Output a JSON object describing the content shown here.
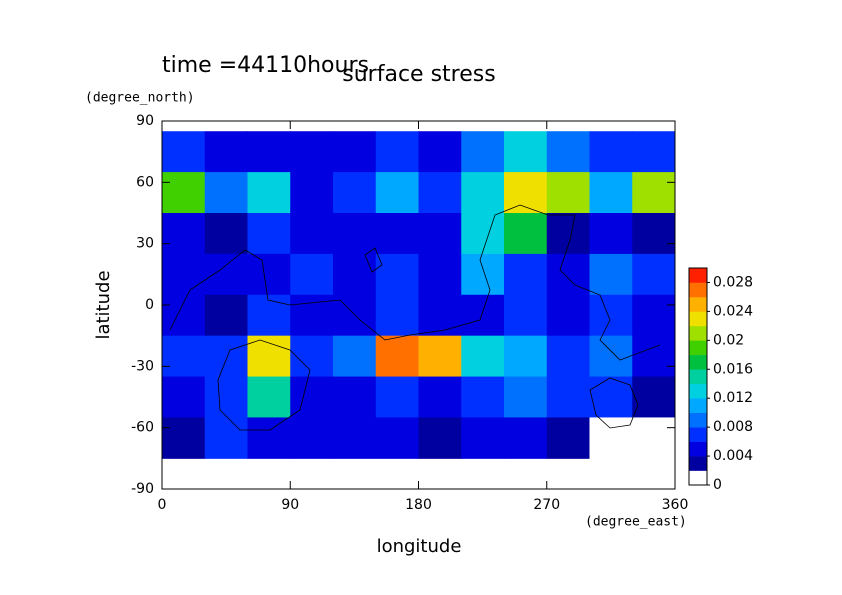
{
  "chart_data": {
    "type": "heatmap",
    "time_label": "time =44110hours",
    "title": "surface stress",
    "y_unit": "(degree_north)",
    "y_label": "latitude",
    "x_label": "longitude",
    "x_unit": "(degree_east)",
    "x": [
      15,
      45,
      75,
      105,
      135,
      165,
      195,
      225,
      255,
      285,
      315,
      345
    ],
    "y": [
      75,
      55,
      35,
      15,
      -5,
      -25,
      -45,
      -65
    ],
    "z": [
      [
        0.006,
        0.005,
        0.004,
        0.005,
        0.004,
        0.006,
        0.005,
        0.008,
        0.012,
        0.008,
        0.006,
        0.006
      ],
      [
        0.018,
        0.008,
        0.012,
        0.004,
        0.006,
        0.01,
        0.006,
        0.012,
        0.022,
        0.02,
        0.01,
        0.02
      ],
      [
        0.004,
        0.003,
        0.006,
        0.004,
        0.005,
        0.004,
        0.004,
        0.012,
        0.016,
        0.002,
        0.005,
        0.003
      ],
      [
        0.005,
        0.004,
        0.004,
        0.006,
        0.004,
        0.006,
        0.004,
        0.01,
        0.006,
        0.004,
        0.008,
        0.006
      ],
      [
        0.004,
        0.003,
        0.006,
        0.004,
        0.005,
        0.006,
        0.005,
        0.005,
        0.006,
        0.004,
        0.007,
        0.004
      ],
      [
        0.006,
        0.006,
        0.022,
        0.006,
        0.008,
        0.026,
        0.024,
        0.012,
        0.01,
        0.006,
        0.008,
        0.004
      ],
      [
        0.004,
        0.006,
        0.014,
        0.004,
        0.005,
        0.006,
        0.004,
        0.006,
        0.008,
        0.006,
        0.006,
        0.003
      ],
      [
        0.002,
        0.006,
        0.005,
        0.004,
        0.004,
        0.004,
        0.002,
        0.004,
        0.004,
        0.002,
        0.001,
        0.001
      ]
    ],
    "cell_width": 30,
    "cell_height": 20,
    "xlim": [
      0,
      360
    ],
    "xticks": [
      0,
      90,
      180,
      270,
      360
    ],
    "ylim": [
      -90,
      90
    ],
    "yticks": [
      -90,
      -60,
      -30,
      0,
      30,
      60,
      90
    ],
    "clim": [
      0,
      0.03
    ],
    "cticks": [
      0,
      0.004,
      0.008,
      0.012,
      0.016,
      0.02,
      0.024,
      0.028
    ],
    "colors": [
      "#ffffff",
      "#0000a0",
      "#0000e0",
      "#0030ff",
      "#0070ff",
      "#00a8ff",
      "#00d0e0",
      "#00d0a0",
      "#00c040",
      "#40d000",
      "#a0e000",
      "#f0e000",
      "#ffb000",
      "#ff7000",
      "#ff2000"
    ]
  }
}
